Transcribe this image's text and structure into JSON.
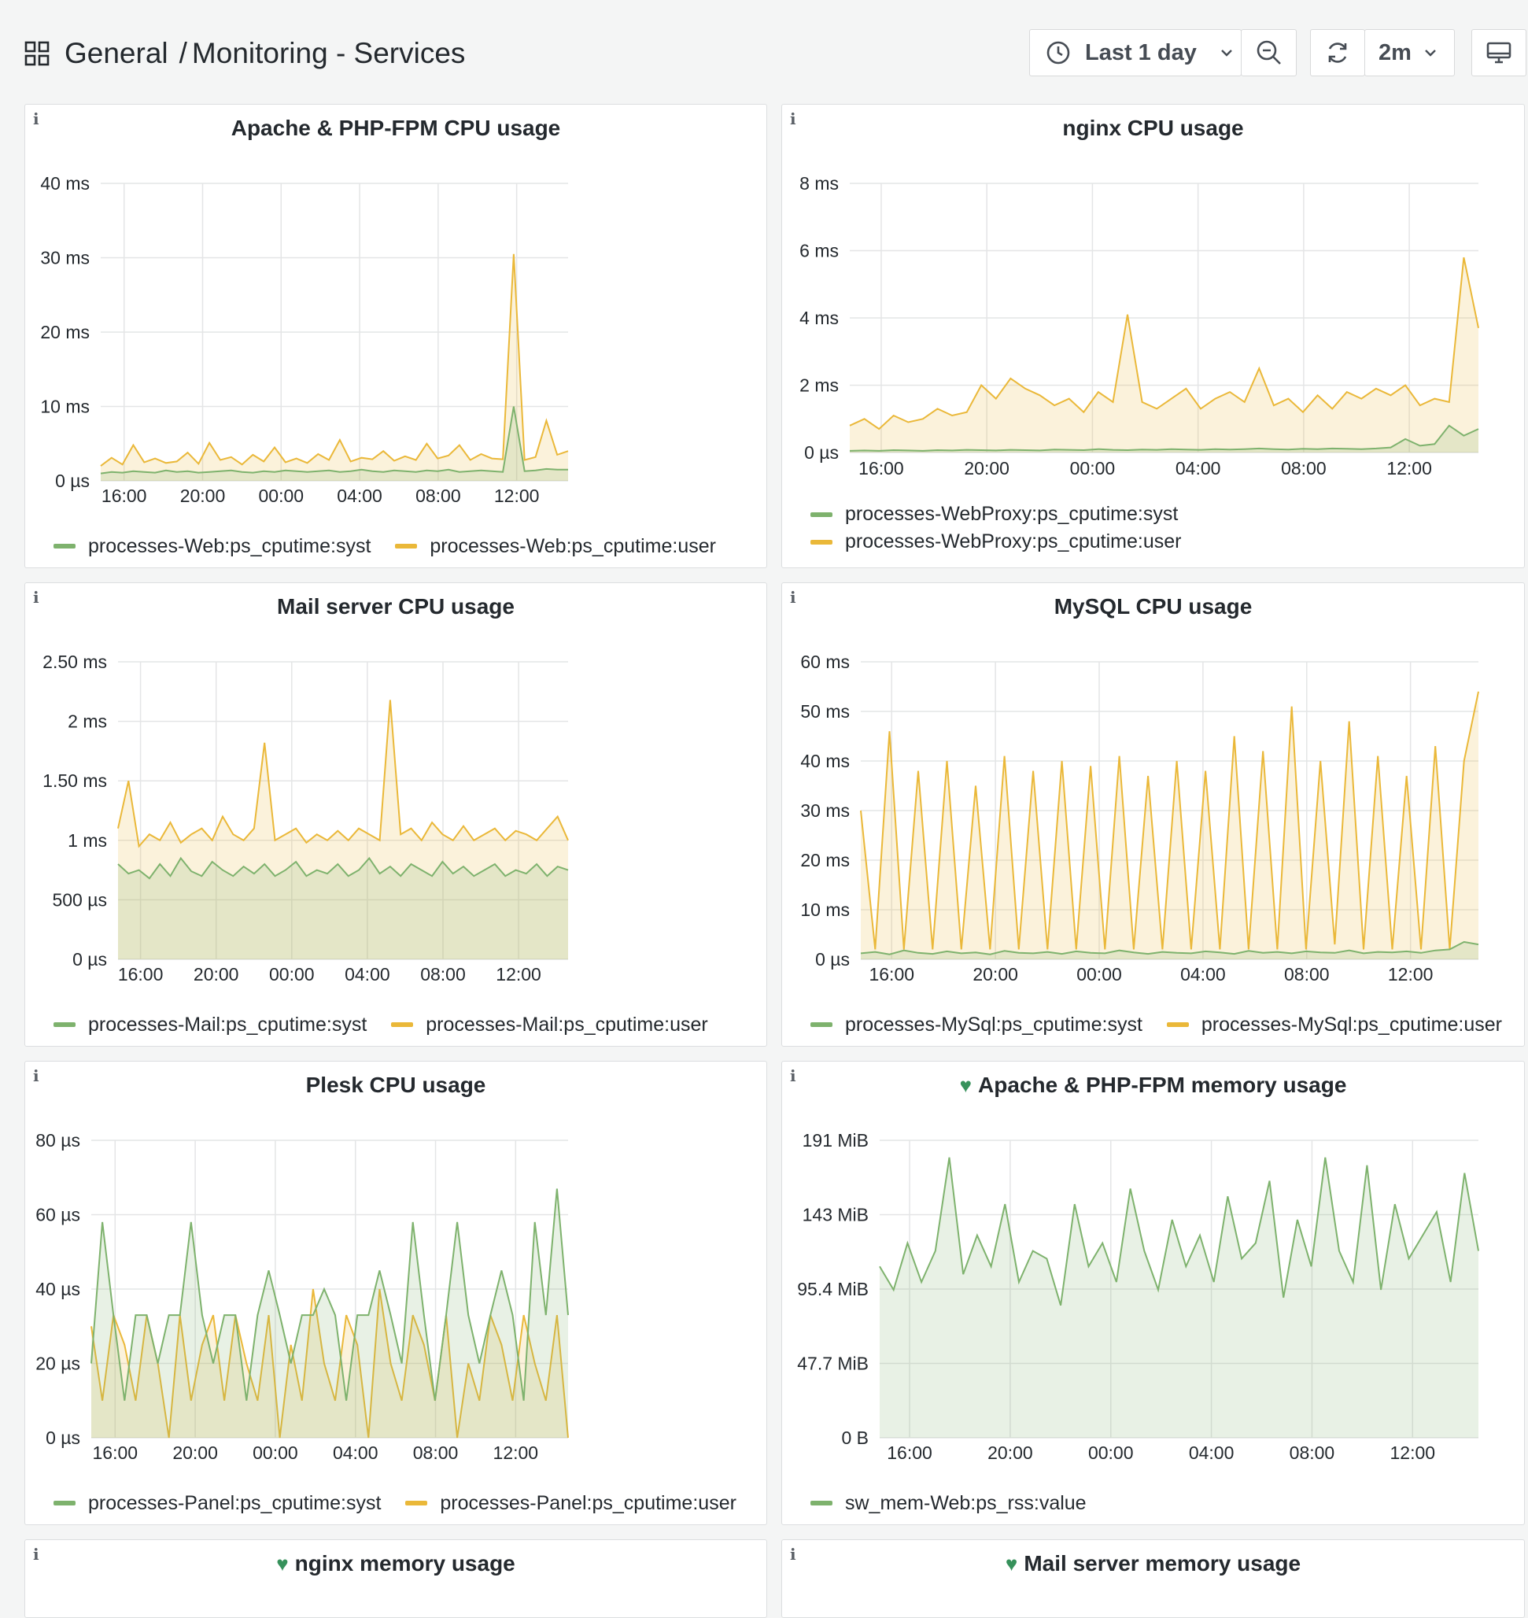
{
  "header": {
    "breadcrumb_folder": "General",
    "breadcrumb_sep": "/",
    "dashboard_title": "Monitoring - Services",
    "time_range": "Last 1 day",
    "refresh_interval": "2m"
  },
  "colors": {
    "green": "#7eb26d",
    "yellow": "#eab839"
  },
  "panels": [
    {
      "title": "Apache & PHP-FPM CPU usage",
      "info": "i",
      "legend": [
        "processes-Web:ps_cputime:syst",
        "processes-Web:ps_cputime:user"
      ],
      "chart_data": {
        "type": "area",
        "x_ticks": [
          "16:00",
          "20:00",
          "00:00",
          "04:00",
          "08:00",
          "12:00"
        ],
        "y_ticks": [
          "40 ms",
          "30 ms",
          "20 ms",
          "10 ms",
          "0 µs"
        ],
        "ylim": [
          0,
          40
        ],
        "series": [
          {
            "name": "processes-Web:ps_cputime:syst",
            "color": "#7eb26d",
            "values": [
              1.0,
              1.2,
              1.1,
              1.3,
              1.2,
              1.1,
              1.4,
              1.2,
              1.3,
              1.1,
              1.2,
              1.3,
              1.4,
              1.2,
              1.1,
              1.3,
              1.2,
              1.4,
              1.3,
              1.2,
              1.3,
              1.4,
              1.2,
              1.3,
              1.5,
              1.3,
              1.2,
              1.4,
              1.3,
              1.2,
              1.4,
              1.3,
              1.5,
              1.2,
              1.3,
              1.4,
              1.3,
              1.2,
              10,
              1.3,
              1.4,
              1.6,
              1.5,
              1.5
            ]
          },
          {
            "name": "processes-Web:ps_cputime:user",
            "color": "#eab839",
            "values": [
              2.0,
              3.1,
              2.2,
              4.8,
              2.5,
              3.0,
              2.4,
              2.6,
              3.8,
              2.3,
              5.1,
              2.8,
              3.2,
              2.2,
              3.5,
              2.6,
              4.5,
              2.5,
              3.0,
              2.4,
              3.6,
              2.8,
              5.5,
              2.6,
              3.1,
              2.9,
              4.0,
              2.7,
              3.3,
              2.8,
              5.0,
              3.0,
              3.4,
              4.8,
              2.8,
              3.6,
              3.0,
              2.9,
              30.5,
              2.8,
              3.2,
              8.1,
              3.5,
              4.0
            ]
          }
        ]
      }
    },
    {
      "title": "nginx CPU usage",
      "info": "i",
      "legend": [
        "processes-WebProxy:ps_cputime:syst",
        "processes-WebProxy:ps_cputime:user"
      ],
      "chart_data": {
        "type": "area",
        "x_ticks": [
          "16:00",
          "20:00",
          "00:00",
          "04:00",
          "08:00",
          "12:00"
        ],
        "y_ticks": [
          "8 ms",
          "6 ms",
          "4 ms",
          "2 ms",
          "0 µs"
        ],
        "ylim": [
          0,
          8
        ],
        "series": [
          {
            "name": "processes-WebProxy:ps_cputime:syst",
            "color": "#7eb26d",
            "values": [
              0.05,
              0.06,
              0.05,
              0.07,
              0.06,
              0.05,
              0.07,
              0.06,
              0.08,
              0.07,
              0.06,
              0.08,
              0.07,
              0.06,
              0.09,
              0.08,
              0.07,
              0.1,
              0.08,
              0.07,
              0.09,
              0.08,
              0.1,
              0.09,
              0.08,
              0.1,
              0.09,
              0.1,
              0.12,
              0.1,
              0.09,
              0.11,
              0.1,
              0.12,
              0.11,
              0.1,
              0.12,
              0.15,
              0.4,
              0.2,
              0.25,
              0.8,
              0.5,
              0.7
            ]
          },
          {
            "name": "processes-WebProxy:ps_cputime:user",
            "color": "#eab839",
            "values": [
              0.8,
              1.0,
              0.7,
              1.1,
              0.9,
              1.0,
              1.3,
              1.1,
              1.2,
              2.0,
              1.6,
              2.2,
              1.9,
              1.7,
              1.4,
              1.6,
              1.2,
              1.8,
              1.5,
              4.1,
              1.5,
              1.3,
              1.6,
              1.9,
              1.3,
              1.6,
              1.8,
              1.5,
              2.5,
              1.4,
              1.6,
              1.2,
              1.7,
              1.3,
              1.8,
              1.6,
              1.9,
              1.7,
              2.0,
              1.4,
              1.6,
              1.5,
              5.8,
              3.7
            ]
          }
        ]
      }
    },
    {
      "title": "Mail server CPU usage",
      "info": "i",
      "legend": [
        "processes-Mail:ps_cputime:syst",
        "processes-Mail:ps_cputime:user"
      ],
      "chart_data": {
        "type": "area",
        "x_ticks": [
          "16:00",
          "20:00",
          "00:00",
          "04:00",
          "08:00",
          "12:00"
        ],
        "y_ticks": [
          "2.50 ms",
          "2 ms",
          "1.50 ms",
          "1 ms",
          "500 µs",
          "0 µs"
        ],
        "ylim": [
          0,
          2.5
        ],
        "series": [
          {
            "name": "processes-Mail:ps_cputime:syst",
            "color": "#7eb26d",
            "values": [
              0.8,
              0.72,
              0.75,
              0.68,
              0.8,
              0.7,
              0.85,
              0.74,
              0.7,
              0.82,
              0.75,
              0.7,
              0.78,
              0.72,
              0.8,
              0.7,
              0.75,
              0.82,
              0.7,
              0.75,
              0.72,
              0.8,
              0.7,
              0.75,
              0.85,
              0.72,
              0.78,
              0.7,
              0.8,
              0.75,
              0.7,
              0.82,
              0.72,
              0.78,
              0.7,
              0.75,
              0.8,
              0.7,
              0.75,
              0.72,
              0.8,
              0.7,
              0.78,
              0.75
            ]
          },
          {
            "name": "processes-Mail:ps_cputime:user",
            "color": "#eab839",
            "values": [
              1.1,
              1.5,
              0.95,
              1.05,
              1.0,
              1.15,
              0.98,
              1.05,
              1.1,
              1.0,
              1.2,
              1.05,
              1.0,
              1.1,
              1.82,
              1.0,
              1.05,
              1.1,
              0.98,
              1.05,
              1.0,
              1.08,
              1.0,
              1.1,
              1.05,
              1.0,
              2.18,
              1.05,
              1.1,
              1.0,
              1.15,
              1.05,
              1.0,
              1.12,
              1.0,
              1.05,
              1.1,
              1.0,
              1.08,
              1.05,
              1.0,
              1.1,
              1.2,
              1.0
            ]
          }
        ]
      }
    },
    {
      "title": "MySQL CPU usage",
      "info": "i",
      "legend": [
        "processes-MySql:ps_cputime:syst",
        "processes-MySql:ps_cputime:user"
      ],
      "chart_data": {
        "type": "area",
        "x_ticks": [
          "16:00",
          "20:00",
          "00:00",
          "04:00",
          "08:00",
          "12:00"
        ],
        "y_ticks": [
          "60 ms",
          "50 ms",
          "40 ms",
          "30 ms",
          "20 ms",
          "10 ms",
          "0 µs"
        ],
        "ylim": [
          0,
          60
        ],
        "series": [
          {
            "name": "processes-MySql:ps_cputime:syst",
            "color": "#7eb26d",
            "values": [
              1.2,
              1.5,
              1.0,
              1.8,
              1.3,
              1.1,
              1.6,
              1.2,
              1.4,
              1.0,
              1.7,
              1.3,
              1.2,
              1.5,
              1.1,
              1.6,
              1.3,
              1.2,
              1.8,
              1.4,
              1.1,
              1.5,
              1.3,
              1.2,
              1.6,
              1.4,
              1.1,
              1.7,
              1.3,
              1.5,
              1.2,
              1.6,
              1.4,
              1.3,
              1.8,
              1.2,
              1.5,
              1.4,
              1.6,
              1.3,
              1.8,
              2.0,
              3.5,
              3.0
            ]
          },
          {
            "name": "processes-MySql:ps_cputime:user",
            "color": "#eab839",
            "values": [
              30,
              2,
              46,
              2,
              38,
              2,
              40,
              2,
              35,
              2,
              41,
              2,
              38,
              2,
              40,
              2,
              39,
              2,
              41,
              2,
              37,
              2,
              40,
              2,
              38,
              2,
              45,
              2,
              42,
              2,
              51,
              2,
              40,
              3,
              48,
              2,
              41,
              2,
              37,
              2,
              43,
              2,
              40,
              54
            ]
          }
        ]
      }
    },
    {
      "title": "Plesk CPU usage",
      "info": "i",
      "legend": [
        "processes-Panel:ps_cputime:syst",
        "processes-Panel:ps_cputime:user"
      ],
      "chart_data": {
        "type": "area",
        "x_ticks": [
          "16:00",
          "20:00",
          "00:00",
          "04:00",
          "08:00",
          "12:00"
        ],
        "y_ticks": [
          "80 µs",
          "60 µs",
          "40 µs",
          "20 µs",
          "0 µs"
        ],
        "ylim": [
          0,
          80
        ],
        "series": [
          {
            "name": "processes-Panel:ps_cputime:syst",
            "color": "#7eb26d",
            "values": [
              20,
              58,
              33,
              10,
              33,
              33,
              20,
              33,
              33,
              58,
              33,
              20,
              33,
              33,
              10,
              33,
              45,
              33,
              20,
              33,
              33,
              40,
              33,
              10,
              33,
              33,
              45,
              33,
              20,
              58,
              33,
              10,
              33,
              58,
              33,
              20,
              33,
              45,
              33,
              10,
              58,
              33,
              67,
              33
            ]
          },
          {
            "name": "processes-Panel:ps_cputime:user",
            "color": "#eab839",
            "values": [
              30,
              10,
              33,
              25,
              10,
              33,
              20,
              0,
              33,
              10,
              25,
              33,
              10,
              33,
              20,
              10,
              33,
              0,
              25,
              10,
              40,
              20,
              10,
              33,
              25,
              0,
              40,
              20,
              10,
              33,
              25,
              10,
              33,
              0,
              20,
              10,
              33,
              25,
              10,
              33,
              20,
              10,
              33,
              0
            ]
          }
        ]
      }
    },
    {
      "title": "Apache & PHP-FPM memory usage",
      "info": "i",
      "heart": "♥",
      "legend": [
        "sw_mem-Web:ps_rss:value"
      ],
      "chart_data": {
        "type": "area",
        "x_ticks": [
          "16:00",
          "20:00",
          "00:00",
          "04:00",
          "08:00",
          "12:00"
        ],
        "y_ticks": [
          "191 MiB",
          "143 MiB",
          "95.4 MiB",
          "47.7 MiB",
          "0 B"
        ],
        "ylim": [
          0,
          191
        ],
        "series": [
          {
            "name": "sw_mem-Web:ps_rss:value",
            "color": "#7eb26d",
            "values": [
              110,
              95,
              125,
              100,
              120,
              180,
              105,
              130,
              110,
              150,
              100,
              120,
              115,
              85,
              150,
              110,
              125,
              100,
              160,
              120,
              95,
              140,
              110,
              130,
              100,
              155,
              115,
              125,
              165,
              90,
              140,
              110,
              180,
              120,
              100,
              175,
              95,
              150,
              115,
              130,
              145,
              100,
              170,
              120
            ]
          }
        ]
      }
    },
    {
      "title": "nginx memory usage",
      "info": "i",
      "heart": "♥"
    },
    {
      "title": "Mail server memory usage",
      "info": "i",
      "heart": "♥"
    }
  ]
}
